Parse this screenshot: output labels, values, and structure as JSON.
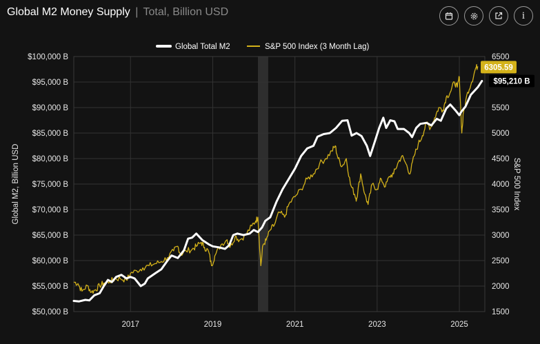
{
  "header": {
    "title": "Global M2 Money Supply",
    "separator": "|",
    "subtitle": "Total, Billion USD"
  },
  "toolbar": [
    {
      "name": "calendar-button",
      "icon": "calendar-icon"
    },
    {
      "name": "settings-button",
      "icon": "gear-icon"
    },
    {
      "name": "open-external-button",
      "icon": "external-link-icon"
    },
    {
      "name": "info-button",
      "icon": "info-icon",
      "glyph": "i"
    }
  ],
  "colors": {
    "background": "#131313",
    "m2": "#ffffff",
    "sp500": "#d4b21a",
    "grid": "#333333",
    "recession_band": "#2e2e2e"
  },
  "chart_data": {
    "type": "line",
    "title": "Global M2 Money Supply",
    "subtitle": "Total, Billion USD",
    "xlabel": "",
    "ylabel": "Global M2, Billion USD",
    "y2label": "S&P 500 Index",
    "xlim": [
      2015.62,
      2025.62
    ],
    "ylim": [
      50000,
      100000
    ],
    "y2lim": [
      1500,
      6500
    ],
    "x_ticks": [
      2017,
      2019,
      2021,
      2023,
      2025
    ],
    "x_tick_labels": [
      "2017",
      "2019",
      "2021",
      "2023",
      "2025"
    ],
    "y_ticks": [
      50000,
      55000,
      60000,
      65000,
      70000,
      75000,
      80000,
      85000,
      90000,
      95000,
      100000
    ],
    "y_tick_labels": [
      "$50,000 B",
      "$55,000 B",
      "$60,000 B",
      "$65,000 B",
      "$70,000 B",
      "$75,000 B",
      "$80,000 B",
      "$85,000 B",
      "$90,000 B",
      "$95,000 B",
      "$100,000 B"
    ],
    "y2_ticks": [
      1500,
      2000,
      2500,
      3000,
      3500,
      4000,
      4500,
      5000,
      5500,
      6000,
      6500
    ],
    "y2_tick_labels": [
      "1500",
      "2000",
      "2500",
      "3000",
      "3500",
      "4000",
      "4500",
      "5000",
      "5500",
      "6000",
      "6500"
    ],
    "grid": true,
    "legend_position": "top-center",
    "recession_band": [
      2020.1,
      2020.35
    ],
    "series": [
      {
        "name": "Global Total M2",
        "axis": "left",
        "color": "#ffffff",
        "last_value_label": "$95,210 B",
        "points": [
          [
            2015.62,
            52100
          ],
          [
            2015.75,
            52000
          ],
          [
            2015.9,
            52300
          ],
          [
            2016.0,
            52200
          ],
          [
            2016.12,
            53200
          ],
          [
            2016.25,
            53600
          ],
          [
            2016.35,
            55000
          ],
          [
            2016.45,
            56200
          ],
          [
            2016.55,
            55800
          ],
          [
            2016.65,
            56800
          ],
          [
            2016.78,
            57200
          ],
          [
            2016.9,
            56500
          ],
          [
            2017.0,
            56800
          ],
          [
            2017.1,
            56500
          ],
          [
            2017.25,
            55000
          ],
          [
            2017.35,
            55500
          ],
          [
            2017.42,
            56500
          ],
          [
            2017.6,
            57500
          ],
          [
            2017.75,
            58300
          ],
          [
            2017.9,
            60000
          ],
          [
            2018.0,
            61000
          ],
          [
            2018.15,
            60500
          ],
          [
            2018.3,
            62000
          ],
          [
            2018.4,
            64300
          ],
          [
            2018.5,
            64500
          ],
          [
            2018.6,
            65300
          ],
          [
            2018.75,
            64000
          ],
          [
            2018.9,
            63200
          ],
          [
            2019.0,
            62800
          ],
          [
            2019.15,
            62600
          ],
          [
            2019.3,
            62300
          ],
          [
            2019.4,
            63000
          ],
          [
            2019.5,
            65000
          ],
          [
            2019.6,
            65300
          ],
          [
            2019.75,
            65000
          ],
          [
            2019.9,
            65300
          ],
          [
            2020.0,
            66000
          ],
          [
            2020.1,
            65600
          ],
          [
            2020.2,
            66500
          ],
          [
            2020.28,
            67800
          ],
          [
            2020.4,
            68500
          ],
          [
            2020.55,
            71500
          ],
          [
            2020.7,
            74000
          ],
          [
            2020.85,
            76000
          ],
          [
            2021.0,
            78000
          ],
          [
            2021.15,
            80500
          ],
          [
            2021.3,
            82000
          ],
          [
            2021.45,
            82500
          ],
          [
            2021.55,
            84300
          ],
          [
            2021.7,
            84800
          ],
          [
            2021.85,
            85000
          ],
          [
            2022.0,
            86000
          ],
          [
            2022.15,
            87400
          ],
          [
            2022.28,
            87500
          ],
          [
            2022.38,
            84500
          ],
          [
            2022.5,
            85000
          ],
          [
            2022.62,
            84400
          ],
          [
            2022.75,
            82500
          ],
          [
            2022.83,
            80500
          ],
          [
            2022.95,
            83500
          ],
          [
            2023.05,
            86000
          ],
          [
            2023.15,
            88000
          ],
          [
            2023.22,
            86000
          ],
          [
            2023.32,
            87500
          ],
          [
            2023.42,
            87300
          ],
          [
            2023.5,
            85800
          ],
          [
            2023.65,
            85800
          ],
          [
            2023.78,
            85000
          ],
          [
            2023.85,
            84200
          ],
          [
            2023.95,
            86000
          ],
          [
            2024.05,
            86800
          ],
          [
            2024.2,
            87000
          ],
          [
            2024.32,
            86500
          ],
          [
            2024.45,
            87800
          ],
          [
            2024.55,
            87400
          ],
          [
            2024.68,
            89800
          ],
          [
            2024.78,
            90600
          ],
          [
            2024.9,
            89500
          ],
          [
            2025.0,
            88500
          ],
          [
            2025.05,
            89200
          ],
          [
            2025.15,
            90200
          ],
          [
            2025.28,
            92500
          ],
          [
            2025.45,
            94000
          ],
          [
            2025.55,
            95210
          ]
        ]
      },
      {
        "name": "S&P 500 Index (3 Month Lag)",
        "axis": "right",
        "color": "#d4b21a",
        "last_value_label": "6305.59",
        "points": [
          [
            2015.62,
            2080
          ],
          [
            2015.72,
            2050
          ],
          [
            2015.82,
            1900
          ],
          [
            2015.95,
            2010
          ],
          [
            2016.05,
            1880
          ],
          [
            2016.15,
            1930
          ],
          [
            2016.25,
            2010
          ],
          [
            2016.35,
            2060
          ],
          [
            2016.5,
            2090
          ],
          [
            2016.62,
            2140
          ],
          [
            2016.75,
            2150
          ],
          [
            2016.9,
            2120
          ],
          [
            2017.0,
            2250
          ],
          [
            2017.15,
            2300
          ],
          [
            2017.3,
            2360
          ],
          [
            2017.45,
            2400
          ],
          [
            2017.6,
            2440
          ],
          [
            2017.75,
            2480
          ],
          [
            2017.9,
            2560
          ],
          [
            2018.05,
            2690
          ],
          [
            2018.15,
            2780
          ],
          [
            2018.22,
            2620
          ],
          [
            2018.35,
            2690
          ],
          [
            2018.5,
            2720
          ],
          [
            2018.6,
            2780
          ],
          [
            2018.72,
            2860
          ],
          [
            2018.8,
            2760
          ],
          [
            2018.9,
            2680
          ],
          [
            2018.97,
            2400
          ],
          [
            2019.05,
            2590
          ],
          [
            2019.2,
            2810
          ],
          [
            2019.35,
            2910
          ],
          [
            2019.42,
            2760
          ],
          [
            2019.55,
            2980
          ],
          [
            2019.65,
            2900
          ],
          [
            2019.8,
            3000
          ],
          [
            2019.95,
            3180
          ],
          [
            2020.05,
            3280
          ],
          [
            2020.1,
            3350
          ],
          [
            2020.17,
            2400
          ],
          [
            2020.22,
            2800
          ],
          [
            2020.3,
            2900
          ],
          [
            2020.4,
            3100
          ],
          [
            2020.5,
            3200
          ],
          [
            2020.62,
            3450
          ],
          [
            2020.75,
            3350
          ],
          [
            2020.85,
            3600
          ],
          [
            2021.0,
            3750
          ],
          [
            2021.15,
            3900
          ],
          [
            2021.3,
            4100
          ],
          [
            2021.45,
            4200
          ],
          [
            2021.6,
            4400
          ],
          [
            2021.75,
            4500
          ],
          [
            2021.9,
            4650
          ],
          [
            2021.98,
            4750
          ],
          [
            2022.05,
            4500
          ],
          [
            2022.15,
            4350
          ],
          [
            2022.25,
            4500
          ],
          [
            2022.35,
            4000
          ],
          [
            2022.45,
            3800
          ],
          [
            2022.5,
            3700
          ],
          [
            2022.6,
            4200
          ],
          [
            2022.7,
            3800
          ],
          [
            2022.78,
            3600
          ],
          [
            2022.88,
            4000
          ],
          [
            2023.0,
            3900
          ],
          [
            2023.1,
            4100
          ],
          [
            2023.2,
            3950
          ],
          [
            2023.3,
            4150
          ],
          [
            2023.4,
            4200
          ],
          [
            2023.5,
            4400
          ],
          [
            2023.6,
            4550
          ],
          [
            2023.7,
            4400
          ],
          [
            2023.8,
            4200
          ],
          [
            2023.9,
            4550
          ],
          [
            2024.0,
            4780
          ],
          [
            2024.1,
            4950
          ],
          [
            2024.2,
            5200
          ],
          [
            2024.3,
            5100
          ],
          [
            2024.4,
            5300
          ],
          [
            2024.5,
            5500
          ],
          [
            2024.6,
            5450
          ],
          [
            2024.68,
            5700
          ],
          [
            2024.78,
            5800
          ],
          [
            2024.88,
            6000
          ],
          [
            2024.95,
            5900
          ],
          [
            2025.0,
            6100
          ],
          [
            2025.06,
            5000
          ],
          [
            2025.1,
            5400
          ],
          [
            2025.2,
            5800
          ],
          [
            2025.3,
            6000
          ],
          [
            2025.4,
            6280
          ],
          [
            2025.45,
            6305.59
          ]
        ]
      }
    ]
  }
}
